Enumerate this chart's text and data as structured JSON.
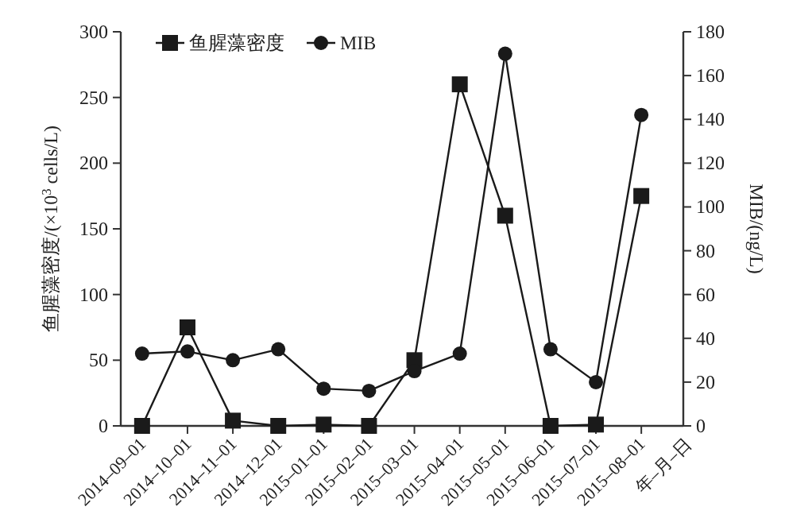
{
  "chart_data": {
    "type": "line",
    "xlabel": "年–月–日",
    "ylabel": "鱼腥藻密度/(×10$^{3}$ cells/L)",
    "y2label": "MIB/(ng/L)",
    "categories": [
      "2014–09–01",
      "2014–10–01",
      "2014–11–01",
      "2014–12–01",
      "2015–01–01",
      "2015–02–01",
      "2015–03–01",
      "2015–04–01",
      "2015–05–01",
      "2015–06–01",
      "2015–07–01",
      "2015–08–01"
    ],
    "series": [
      {
        "name": "鱼腥藻密度",
        "color": "#1a1a1a",
        "marker": "square",
        "values": [
          0,
          75,
          4,
          0,
          1,
          0,
          50,
          260,
          160,
          0,
          1,
          175
        ]
      },
      {
        "name": "MIB",
        "color": "#1a1a1a",
        "marker": "circle",
        "axis": "y2",
        "values": [
          33,
          34,
          30,
          35,
          17,
          16,
          25,
          33,
          170,
          35,
          20,
          142
        ]
      }
    ],
    "ylim": [
      0,
      300
    ],
    "yticks": [
      0,
      50,
      100,
      150,
      200,
      250,
      300
    ],
    "y2lim": [
      0,
      180
    ],
    "y2ticks": [
      0,
      20,
      40,
      60,
      80,
      100,
      120,
      140,
      160,
      180
    ],
    "legend": "top left",
    "grid": false,
    "line_style": "solid"
  }
}
